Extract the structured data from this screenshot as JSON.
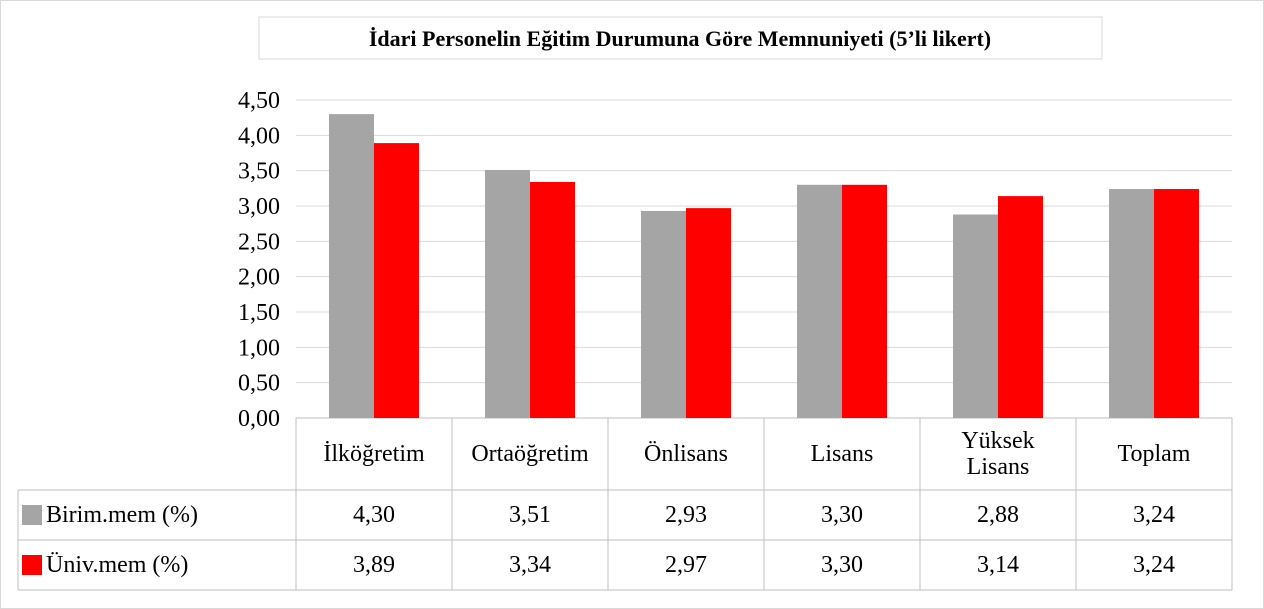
{
  "chart_data": {
    "type": "bar",
    "title": "İdari Personelin Eğitim Durumuna Göre Memnuniyeti (5’li likert)",
    "categories": [
      "İlköğretim",
      "Ortaöğretim",
      "Önlisans",
      "Lisans",
      "Yüksek Lisans",
      "Toplam"
    ],
    "series": [
      {
        "name": "Birim.mem (%)",
        "color": "#a5a5a5",
        "values": [
          4.3,
          3.51,
          2.93,
          3.3,
          2.88,
          3.24
        ],
        "value_labels": [
          "4,30",
          "3,51",
          "2,93",
          "3,30",
          "2,88",
          "3,24"
        ]
      },
      {
        "name": "Üniv.mem (%)",
        "color": "#ff0000",
        "values": [
          3.89,
          3.34,
          2.97,
          3.3,
          3.14,
          3.24
        ],
        "value_labels": [
          "3,89",
          "3,34",
          "2,97",
          "3,30",
          "3,14",
          "3,24"
        ]
      }
    ],
    "ylim": [
      0,
      4.5
    ],
    "yticks": [
      {
        "value": 0,
        "label": "0,00"
      },
      {
        "value": 0.5,
        "label": "0,50"
      },
      {
        "value": 1,
        "label": "1,00"
      },
      {
        "value": 1.5,
        "label": "1,50"
      },
      {
        "value": 2,
        "label": "2,00"
      },
      {
        "value": 2.5,
        "label": "2,50"
      },
      {
        "value": 3,
        "label": "3,00"
      },
      {
        "value": 3.5,
        "label": "3,50"
      },
      {
        "value": 4,
        "label": "4,00"
      },
      {
        "value": 4.5,
        "label": "4,50"
      }
    ],
    "grid": true
  }
}
